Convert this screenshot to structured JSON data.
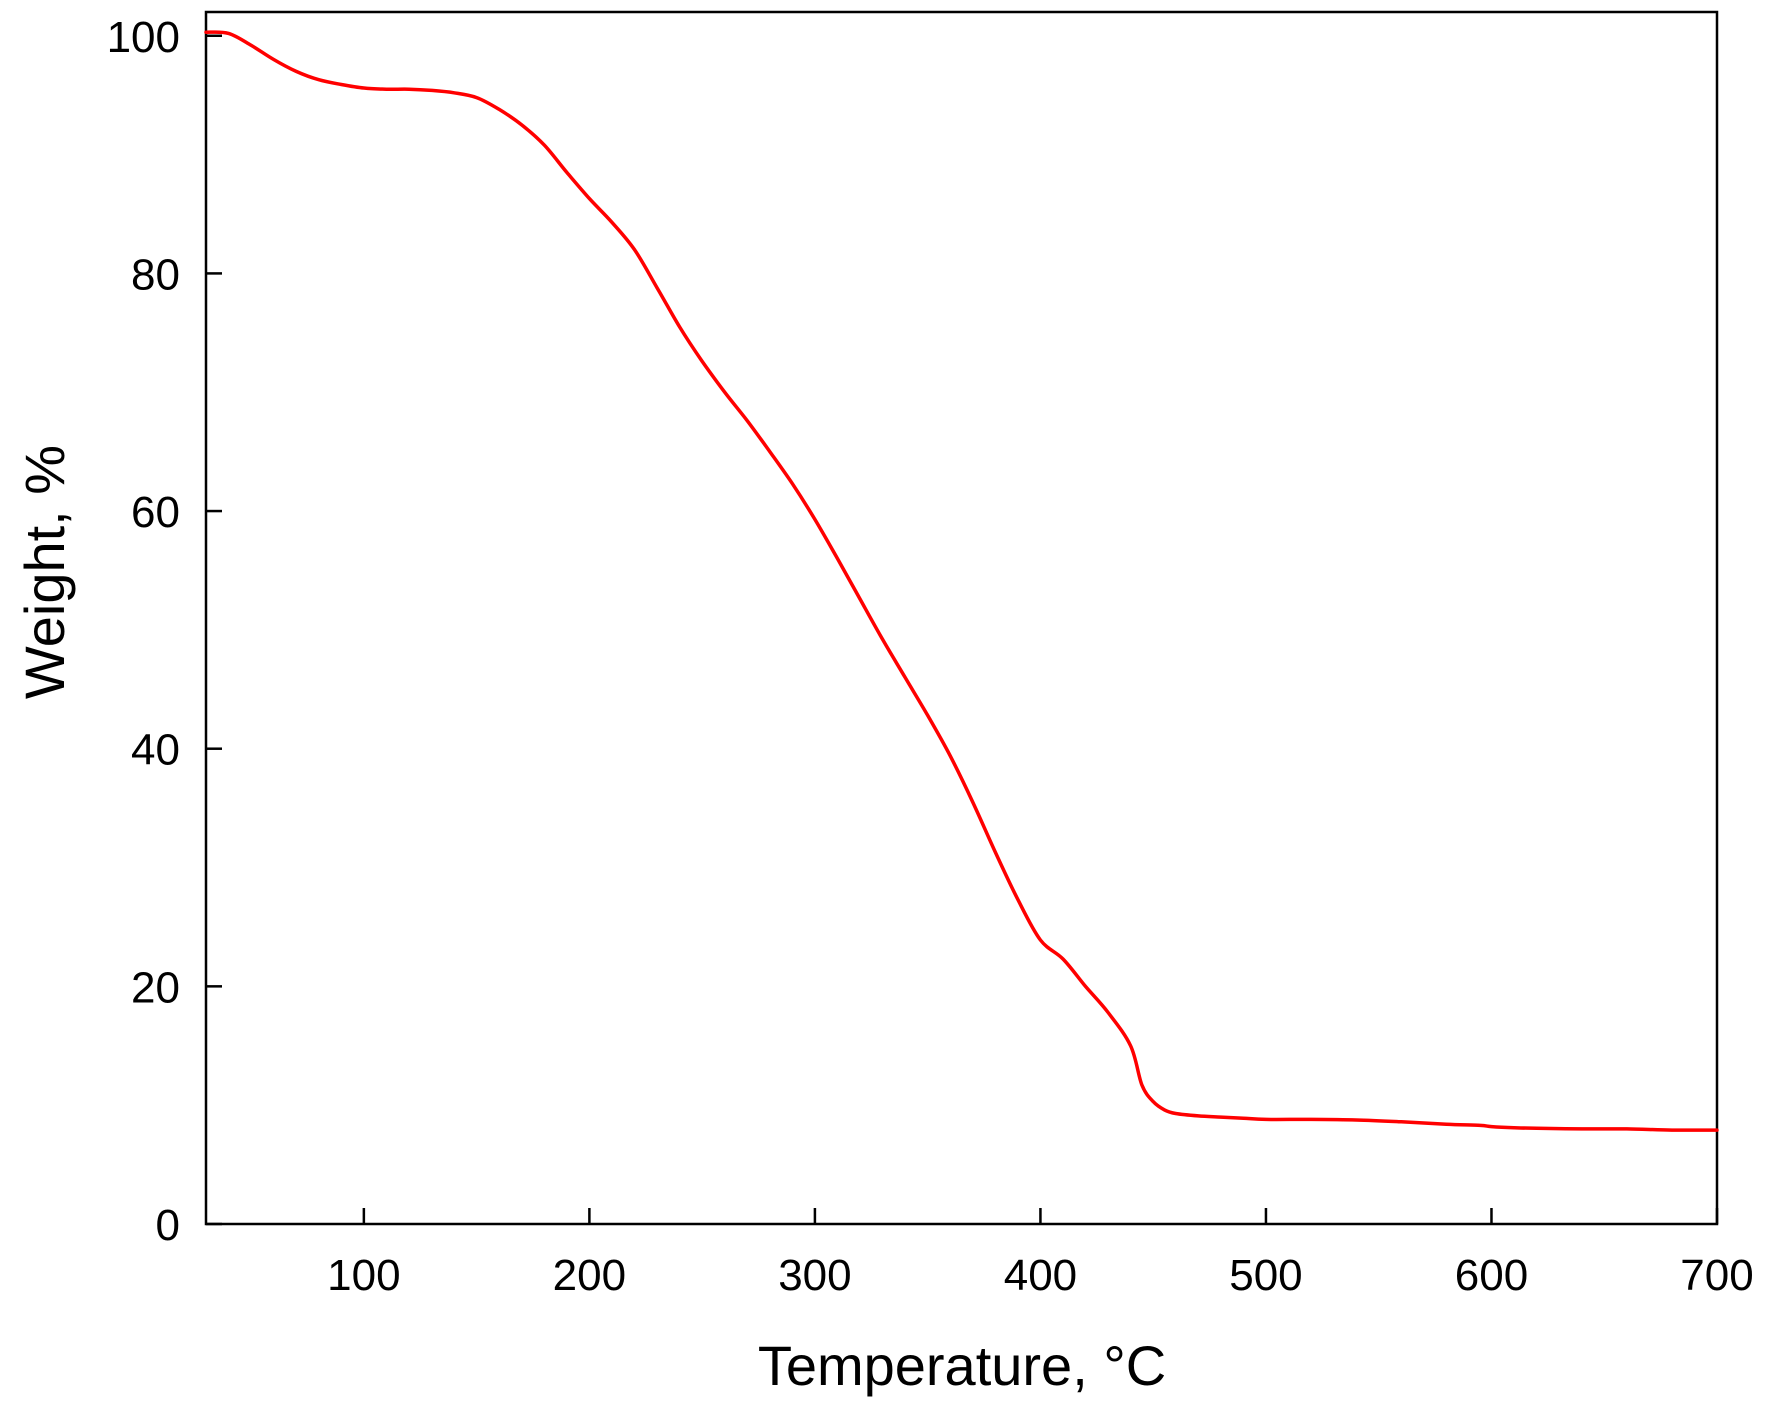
{
  "chart_data": {
    "type": "line",
    "title": "",
    "xlabel": "Temperature, °C",
    "ylabel": "Weight, %",
    "xlim": [
      30,
      700
    ],
    "ylim": [
      0,
      102
    ],
    "xticks": [
      100,
      200,
      300,
      400,
      500,
      600,
      700
    ],
    "yticks": [
      0,
      20,
      40,
      60,
      80,
      100
    ],
    "grid": false,
    "legend": "none",
    "series": [
      {
        "color": "#ff0000",
        "x": [
          30,
          40,
          50,
          60,
          70,
          80,
          90,
          100,
          110,
          120,
          130,
          140,
          150,
          160,
          170,
          180,
          190,
          200,
          210,
          220,
          230,
          240,
          250,
          260,
          270,
          280,
          290,
          300,
          310,
          320,
          330,
          340,
          350,
          360,
          370,
          380,
          390,
          400,
          410,
          420,
          430,
          440,
          445,
          450,
          455,
          460,
          470,
          480,
          490,
          500,
          520,
          540,
          560,
          580,
          595,
          600,
          610,
          620,
          640,
          660,
          680,
          700
        ],
        "y": [
          100.3,
          100.2,
          99.2,
          98.0,
          97.0,
          96.3,
          95.9,
          95.6,
          95.5,
          95.5,
          95.4,
          95.2,
          94.8,
          93.8,
          92.5,
          90.8,
          88.5,
          86.3,
          84.3,
          82.0,
          78.8,
          75.5,
          72.6,
          70.0,
          67.6,
          65.0,
          62.3,
          59.3,
          56.0,
          52.6,
          49.2,
          46.0,
          42.8,
          39.4,
          35.5,
          31.3,
          27.3,
          23.9,
          22.3,
          20.0,
          17.8,
          15.0,
          11.7,
          10.3,
          9.6,
          9.3,
          9.1,
          9.0,
          8.9,
          8.8,
          8.8,
          8.75,
          8.6,
          8.4,
          8.3,
          8.2,
          8.1,
          8.05,
          8.0,
          8.0,
          7.9,
          7.9
        ]
      }
    ]
  }
}
